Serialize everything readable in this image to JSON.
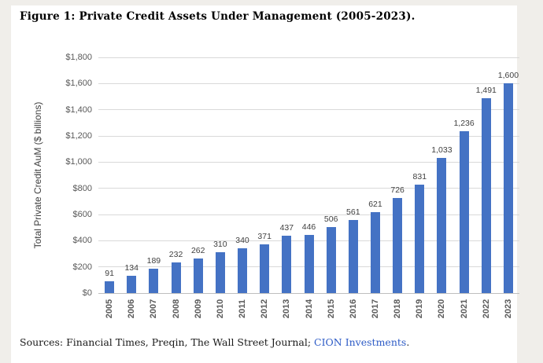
{
  "chart_data": {
    "type": "bar",
    "title": "Figure 1: Private Credit Assets Under Management (2005-2023).",
    "categories": [
      "2005",
      "2006",
      "2007",
      "2008",
      "2009",
      "2010",
      "2011",
      "2012",
      "2013",
      "2014",
      "2015",
      "2016",
      "2017",
      "2018",
      "2019",
      "2020",
      "2021",
      "2022",
      "2023"
    ],
    "values": [
      91,
      134,
      189,
      232,
      262,
      310,
      340,
      371,
      437,
      446,
      506,
      561,
      621,
      726,
      831,
      1033,
      1236,
      1491,
      1600
    ],
    "value_labels": [
      "91",
      "134",
      "189",
      "232",
      "262",
      "310",
      "340",
      "371",
      "437",
      "446",
      "506",
      "561",
      "621",
      "726",
      "831",
      "1,033",
      "1,236",
      "1,491",
      "1,600"
    ],
    "ylabel": "Total Private Credit AuM ($ billions)",
    "xlabel": "",
    "ylim": [
      0,
      1800
    ],
    "ytick_interval": 200,
    "ytick_prefix": "$",
    "ytick_labels": [
      "$0",
      "$200",
      "$400",
      "$600",
      "$800",
      "$1,000",
      "$1,200",
      "$1,400",
      "$1,600",
      "$1,800"
    ],
    "grid": true,
    "legend": false,
    "bar_color": "#4472C4"
  },
  "sources": {
    "prefix": "Sources: Financial Times, Preqin, The Wall Street Journal; ",
    "link_text": "CION Investments",
    "suffix": "."
  },
  "colors": {
    "bar": "#4472C4",
    "gridline": "#d9d9d9",
    "axis_line": "#bfbfbf",
    "tick_label": "#595959",
    "value_label": "#404040",
    "link": "#2d5bc6",
    "page_edge": "#f0eeea"
  }
}
